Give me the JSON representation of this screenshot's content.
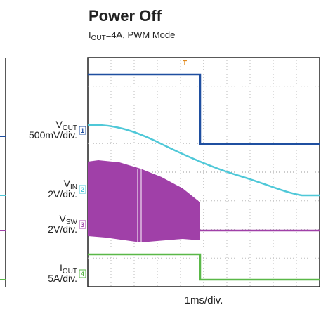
{
  "title": "Power Off",
  "subtitle": {
    "symbol": "I",
    "subscript": "OUT",
    "rest": "=4A, PWM Mode"
  },
  "channels": [
    {
      "symbol": "V",
      "subscript": "OUT",
      "scale": "500mV/div.",
      "marker": "1"
    },
    {
      "symbol": "V",
      "subscript": "IN",
      "scale": "2V/div.",
      "marker": "2"
    },
    {
      "symbol": "V",
      "subscript": "SW",
      "scale": "2V/div.",
      "marker": "3"
    },
    {
      "symbol": "I",
      "subscript": "OUT",
      "scale": "5A/div.",
      "marker": "4"
    }
  ],
  "trigger_marker": "T",
  "time_scale": "1ms/div."
}
